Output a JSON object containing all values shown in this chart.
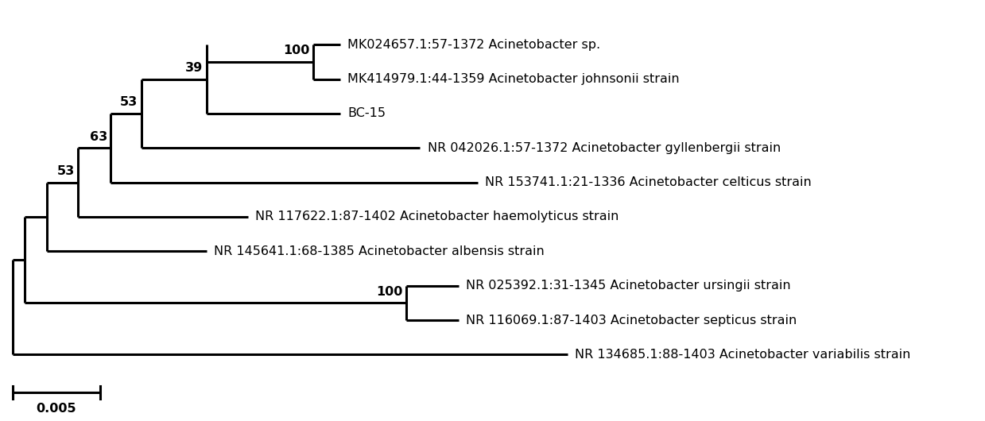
{
  "taxa": [
    "MK024657.1:57-1372 Acinetobacter sp.",
    "MK414979.1:44-1359 Acinetobacter johnsonii strain",
    "BC-15",
    "NR 042026.1:57-1372 Acinetobacter gyllenbergii strain",
    "NR 153741.1:21-1336 Acinetobacter celticus strain",
    "NR 117622.1:87-1402 Acinetobacter haemolyticus strain",
    "NR 145641.1:68-1385 Acinetobacter albensis strain",
    "NR 025392.1:31-1345 Acinetobacter ursingii strain",
    "NR 116069.1:87-1403 Acinetobacter septicus strain",
    "NR 134685.1:88-1403 Acinetobacter variabilis strain"
  ],
  "background_color": "#ffffff",
  "line_color": "#000000",
  "text_color": "#000000",
  "font_size": 11.5,
  "scale_bar_value": "0.005",
  "lw": 2.2
}
